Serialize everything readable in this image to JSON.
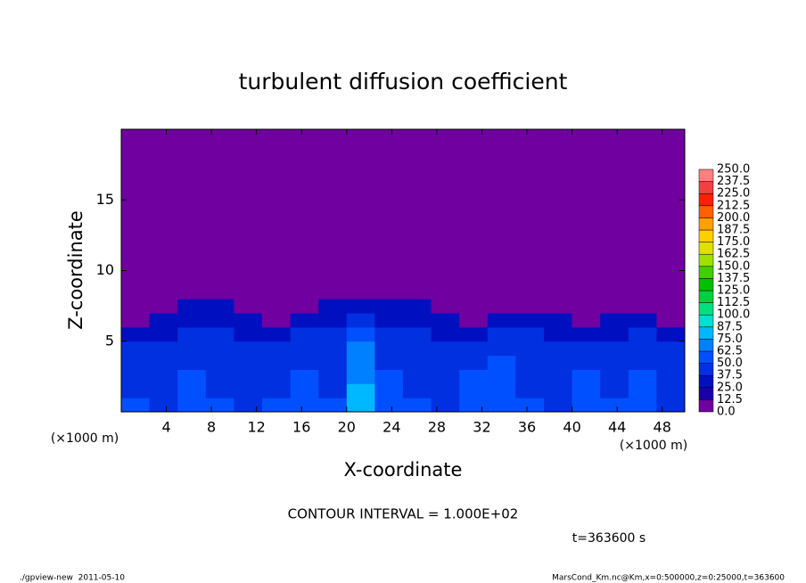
{
  "chart_data": {
    "type": "heatmap",
    "title": "turbulent diffusion coefficient",
    "x_label": "X-coordinate",
    "y_label": "Z-coordinate",
    "x_unit": "(×1000 m)",
    "contour_note": "CONTOUR INTERVAL = 1.000E+02",
    "time_note": "t=363600 s",
    "footer_left": "./gpview-new  2011-05-10",
    "footer_right": "MarsCond_Km.nc@Km,x=0:500000,z=0:25000,t=363600",
    "xlim": [
      0,
      50
    ],
    "ylim": [
      0,
      20
    ],
    "xticks": [
      4,
      8,
      12,
      16,
      20,
      24,
      28,
      32,
      36,
      40,
      44,
      48
    ],
    "yticks": [
      5,
      10,
      15
    ],
    "xbins": [
      0,
      2.5,
      5,
      7.5,
      10,
      12.5,
      15,
      17.5,
      20,
      22.5,
      25,
      27.5,
      30,
      32.5,
      35,
      37.5,
      40,
      42.5,
      45,
      47.5,
      50
    ],
    "ybins": [
      0,
      1,
      2,
      3,
      4,
      5,
      6,
      7,
      8,
      20
    ],
    "z": [
      [
        50,
        45,
        55,
        50,
        45,
        50,
        55,
        50,
        80,
        55,
        50,
        45,
        55,
        60,
        50,
        45,
        55,
        50,
        55,
        45
      ],
      [
        45,
        40,
        50,
        45,
        40,
        45,
        50,
        45,
        75,
        50,
        45,
        40,
        50,
        55,
        45,
        40,
        50,
        45,
        50,
        40
      ],
      [
        45,
        40,
        50,
        45,
        40,
        45,
        50,
        45,
        70,
        50,
        45,
        40,
        50,
        55,
        45,
        40,
        50,
        45,
        50,
        40
      ],
      [
        40,
        45,
        45,
        40,
        45,
        40,
        45,
        40,
        70,
        45,
        40,
        45,
        40,
        50,
        40,
        45,
        45,
        40,
        45,
        40
      ],
      [
        40,
        40,
        45,
        40,
        40,
        40,
        45,
        40,
        65,
        45,
        40,
        40,
        40,
        45,
        40,
        40,
        40,
        40,
        45,
        40
      ],
      [
        25,
        25,
        40,
        40,
        25,
        25,
        40,
        40,
        55,
        40,
        40,
        25,
        25,
        40,
        40,
        25,
        25,
        25,
        40,
        25
      ],
      [
        3,
        25,
        25,
        25,
        25,
        3,
        25,
        35,
        45,
        35,
        25,
        25,
        3,
        25,
        25,
        25,
        3,
        25,
        25,
        3
      ],
      [
        3,
        3,
        25,
        25,
        3,
        3,
        3,
        25,
        25,
        25,
        25,
        3,
        3,
        3,
        3,
        3,
        3,
        3,
        3,
        3
      ],
      [
        3,
        3,
        3,
        3,
        3,
        3,
        3,
        3,
        3,
        3,
        3,
        3,
        3,
        3,
        3,
        3,
        3,
        3,
        3,
        3
      ]
    ],
    "colorbar": {
      "ticks": [
        {
          "value": 0,
          "label": "0.0"
        },
        {
          "value": 12.5,
          "label": "12.5"
        },
        {
          "value": 25,
          "label": "25.0"
        },
        {
          "value": 37.5,
          "label": "37.5"
        },
        {
          "value": 50,
          "label": "50.0"
        },
        {
          "value": 62.5,
          "label": "62.5"
        },
        {
          "value": 75,
          "label": "75.0"
        },
        {
          "value": 87.5,
          "label": "87.5"
        },
        {
          "value": 100,
          "label": "100.0"
        },
        {
          "value": 112.5,
          "label": "112.5"
        },
        {
          "value": 125,
          "label": "125.0"
        },
        {
          "value": 137.5,
          "label": "137.5"
        },
        {
          "value": 150,
          "label": "150.0"
        },
        {
          "value": 162.5,
          "label": "162.5"
        },
        {
          "value": 175,
          "label": "175.0"
        },
        {
          "value": 187.5,
          "label": "187.5"
        },
        {
          "value": 200,
          "label": "200.0"
        },
        {
          "value": 212.5,
          "label": "212.5"
        },
        {
          "value": 225,
          "label": "225.0"
        },
        {
          "value": 237.5,
          "label": "237.5"
        },
        {
          "value": 250,
          "label": "250.0"
        }
      ],
      "colors": [
        "#7000a0",
        "#1800a8",
        "#0010c0",
        "#0030e0",
        "#0050ff",
        "#0080ff",
        "#00b8ff",
        "#00e0d0",
        "#00e080",
        "#00d040",
        "#00c000",
        "#40d000",
        "#a0e000",
        "#e0e000",
        "#ffd000",
        "#ffa000",
        "#ff6000",
        "#ff2000",
        "#f04040",
        "#ff8080"
      ]
    }
  }
}
